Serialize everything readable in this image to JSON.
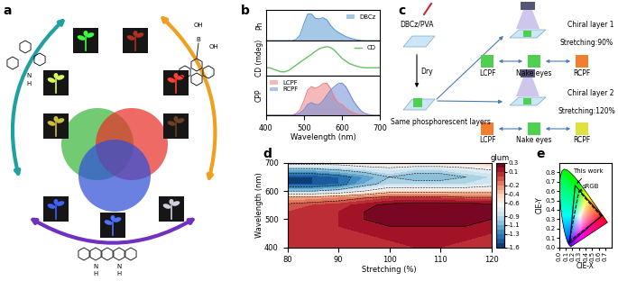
{
  "chart_data": [
    {
      "type": "area",
      "y_label": "Ph",
      "x": [
        400,
        410,
        420,
        430,
        440,
        450,
        460,
        470,
        480,
        490,
        500,
        510,
        520,
        530,
        540,
        550,
        560,
        570,
        580,
        590,
        600,
        610,
        620,
        630,
        640,
        650,
        660,
        670,
        680,
        690,
        700
      ],
      "series": [
        {
          "name": "DBCz",
          "color": "#5b9bd5",
          "values": [
            0,
            0,
            0,
            0,
            0,
            0,
            0,
            0,
            0.05,
            0.2,
            0.6,
            0.95,
            0.95,
            0.8,
            0.78,
            0.82,
            0.75,
            0.55,
            0.4,
            0.3,
            0.22,
            0.15,
            0.1,
            0.06,
            0.03,
            0.01,
            0,
            0,
            0,
            0,
            0
          ]
        }
      ],
      "xlim": [
        400,
        700
      ],
      "ylim": [
        0,
        1.1
      ],
      "tick_labels": false,
      "legend": "upper right"
    },
    {
      "type": "line",
      "y_label": "CD (mdeg)",
      "x": [
        400,
        410,
        420,
        430,
        440,
        450,
        460,
        470,
        480,
        490,
        500,
        510,
        520,
        530,
        540,
        550,
        560,
        570,
        580,
        590,
        600,
        610,
        620,
        630,
        640,
        650,
        660,
        670,
        680,
        690,
        700
      ],
      "series": [
        {
          "name": "CD",
          "color": "#6abf69",
          "values": [
            0,
            0,
            -0.05,
            -0.1,
            -0.15,
            -0.15,
            -0.1,
            0,
            0.1,
            0.2,
            0.3,
            0.4,
            0.5,
            0.6,
            0.7,
            0.75,
            0.78,
            0.75,
            0.65,
            0.5,
            0.35,
            0.25,
            0.15,
            0.1,
            0.05,
            0.02,
            0,
            0,
            0,
            0,
            0
          ]
        }
      ],
      "xlim": [
        400,
        700
      ],
      "ylim": [
        -0.3,
        1.0
      ],
      "tick_labels": false,
      "legend": "upper right"
    },
    {
      "type": "area",
      "y_label": "CPP",
      "x_label": "Wavelength (nm)",
      "x": [
        400,
        410,
        420,
        430,
        440,
        450,
        460,
        470,
        480,
        490,
        500,
        510,
        520,
        530,
        540,
        550,
        560,
        570,
        580,
        590,
        600,
        610,
        620,
        630,
        640,
        650,
        660,
        670,
        680,
        690,
        700
      ],
      "series": [
        {
          "name": "LCPF",
          "color": "#f08080",
          "values": [
            0,
            0,
            0,
            0,
            0,
            0,
            0,
            0,
            0.05,
            0.15,
            0.4,
            0.7,
            0.8,
            0.75,
            0.8,
            0.88,
            0.9,
            0.75,
            0.5,
            0.35,
            0.3,
            0.2,
            0.12,
            0.07,
            0.03,
            0.01,
            0,
            0,
            0,
            0,
            0
          ]
        },
        {
          "name": "RCPF",
          "color": "#6f8fd8",
          "values": [
            0,
            0,
            0,
            0,
            0,
            0,
            0,
            0,
            0.02,
            0.06,
            0.15,
            0.3,
            0.35,
            0.3,
            0.3,
            0.4,
            0.55,
            0.7,
            0.8,
            0.88,
            0.9,
            0.8,
            0.6,
            0.4,
            0.25,
            0.12,
            0.05,
            0.02,
            0,
            0,
            0
          ]
        }
      ],
      "xlim": [
        400,
        700
      ],
      "ylim": [
        0,
        1.1
      ],
      "xticks": [
        400,
        500,
        600,
        700
      ],
      "tick_labels": "x",
      "legend": "upper left"
    },
    {
      "type": "heatmap",
      "x_label": "Stretching (%)",
      "y_label": "Wavelength (nm)",
      "x": [
        80,
        85,
        90,
        95,
        100,
        105,
        110,
        115,
        120
      ],
      "y": [
        400,
        425,
        450,
        475,
        500,
        525,
        550,
        575,
        600,
        625,
        650,
        675,
        700
      ],
      "cells": [
        [
          0.1,
          0.1,
          0.1,
          0.1,
          0.1,
          0.1,
          0.1,
          0.1,
          0.1
        ],
        [
          0.1,
          0.1,
          0.1,
          0.1,
          0.1,
          0.15,
          0.15,
          0.1,
          0.1
        ],
        [
          0.1,
          0.1,
          0.1,
          0.1,
          0.15,
          0.15,
          0.15,
          0.15,
          0.1
        ],
        [
          0.05,
          0.05,
          0.1,
          0.15,
          0.2,
          0.2,
          0.2,
          0.2,
          0.15
        ],
        [
          0.0,
          0.05,
          0.1,
          0.2,
          0.25,
          0.25,
          0.25,
          0.25,
          0.2
        ],
        [
          0.0,
          0.05,
          0.1,
          0.2,
          0.3,
          0.3,
          0.3,
          0.3,
          0.25
        ],
        [
          -0.05,
          0.0,
          0.05,
          0.15,
          0.25,
          0.3,
          0.3,
          0.3,
          0.25
        ],
        [
          -0.3,
          -0.25,
          -0.2,
          -0.1,
          0.0,
          0.0,
          0.0,
          -0.05,
          -0.05
        ],
        [
          -1.0,
          -1.0,
          -0.9,
          -0.7,
          -0.5,
          -0.5,
          -0.5,
          -0.5,
          -0.5
        ],
        [
          -1.5,
          -1.5,
          -1.4,
          -1.1,
          -0.9,
          -0.9,
          -0.9,
          -0.9,
          -0.8
        ],
        [
          -1.5,
          -1.5,
          -1.4,
          -1.2,
          -1.0,
          -1.1,
          -1.1,
          -1.0,
          -0.9
        ],
        [
          -1.1,
          -1.1,
          -1.0,
          -0.9,
          -0.8,
          -0.9,
          -0.9,
          -0.8,
          -0.7
        ],
        [
          -0.6,
          -0.6,
          -0.6,
          -0.5,
          -0.5,
          -0.5,
          -0.5,
          -0.5,
          -0.4
        ]
      ],
      "xlim": [
        80,
        120
      ],
      "xticks": [
        80,
        90,
        100,
        110,
        120
      ],
      "ylim": [
        400,
        700
      ],
      "yticks": [
        400,
        500,
        600,
        700
      ],
      "colorbar_label": "glum",
      "colorbar_range": [
        -1.6,
        0.3
      ],
      "colorbar_ticks": [
        0.3,
        0.1,
        -0.2,
        -0.4,
        -0.6,
        -0.9,
        -1.1,
        -1.3,
        -1.6
      ]
    },
    {
      "type": "cie",
      "x_label": "CIE-X",
      "y_label": "CIE-Y",
      "locus": {
        "x": [
          0.1741,
          0.144,
          0.1241,
          0.1096,
          0.0913,
          0.0687,
          0.0454,
          0.0235,
          0.0082,
          0.0039,
          0.0139,
          0.0389,
          0.0743,
          0.1142,
          0.1547,
          0.2296,
          0.3016,
          0.3731,
          0.4441,
          0.5125,
          0.5752,
          0.627,
          0.6915,
          0.7347
        ],
        "y": [
          0.005,
          0.0297,
          0.0578,
          0.0868,
          0.1327,
          0.2007,
          0.295,
          0.4127,
          0.5384,
          0.6548,
          0.7502,
          0.812,
          0.8338,
          0.8262,
          0.8059,
          0.7543,
          0.6923,
          0.6245,
          0.5547,
          0.4866,
          0.4242,
          0.3725,
          0.3083,
          0.2653
        ]
      },
      "series": [
        {
          "name": "This work",
          "x": [
            0.65,
            0.24,
            0.16
          ],
          "y": [
            0.34,
            0.66,
            0.04
          ],
          "line_style": "solid"
        },
        {
          "name": "sRGB",
          "x": [
            0.64,
            0.3,
            0.15
          ],
          "y": [
            0.33,
            0.6,
            0.06
          ],
          "line_style": "dashed"
        }
      ],
      "xlim": [
        0.0,
        0.8
      ],
      "xticks": [
        0.0,
        0.1,
        0.2,
        0.3,
        0.4,
        0.5,
        0.6,
        0.7
      ],
      "ylim": [
        0.0,
        0.9
      ],
      "yticks": [
        0.0,
        0.1,
        0.2,
        0.3,
        0.4,
        0.5,
        0.6,
        0.7,
        0.8
      ]
    }
  ],
  "diagrams": {
    "panel_labels": [
      "a",
      "b",
      "c",
      "d",
      "e"
    ],
    "a": {
      "molecules": [
        [
          "N",
          "H"
        ],
        [
          "OH",
          "B",
          "OH"
        ],
        [
          "N",
          "H",
          "N",
          "H"
        ]
      ]
    },
    "c": {
      "steps": [
        "DBCz/PVA",
        "Dry",
        "Same phosphorescent layers"
      ],
      "branches": [
        {
          "layer": "Chiral layer 1",
          "stretching": "Stretching:90%",
          "views": [
            "LCPF",
            "Nake eyes",
            "RCPF"
          ]
        },
        {
          "layer": "Chiral layer 2",
          "stretching": "Stretching:120%",
          "views": [
            "LCPF",
            "Nake eyes",
            "RCPF"
          ]
        }
      ]
    }
  }
}
